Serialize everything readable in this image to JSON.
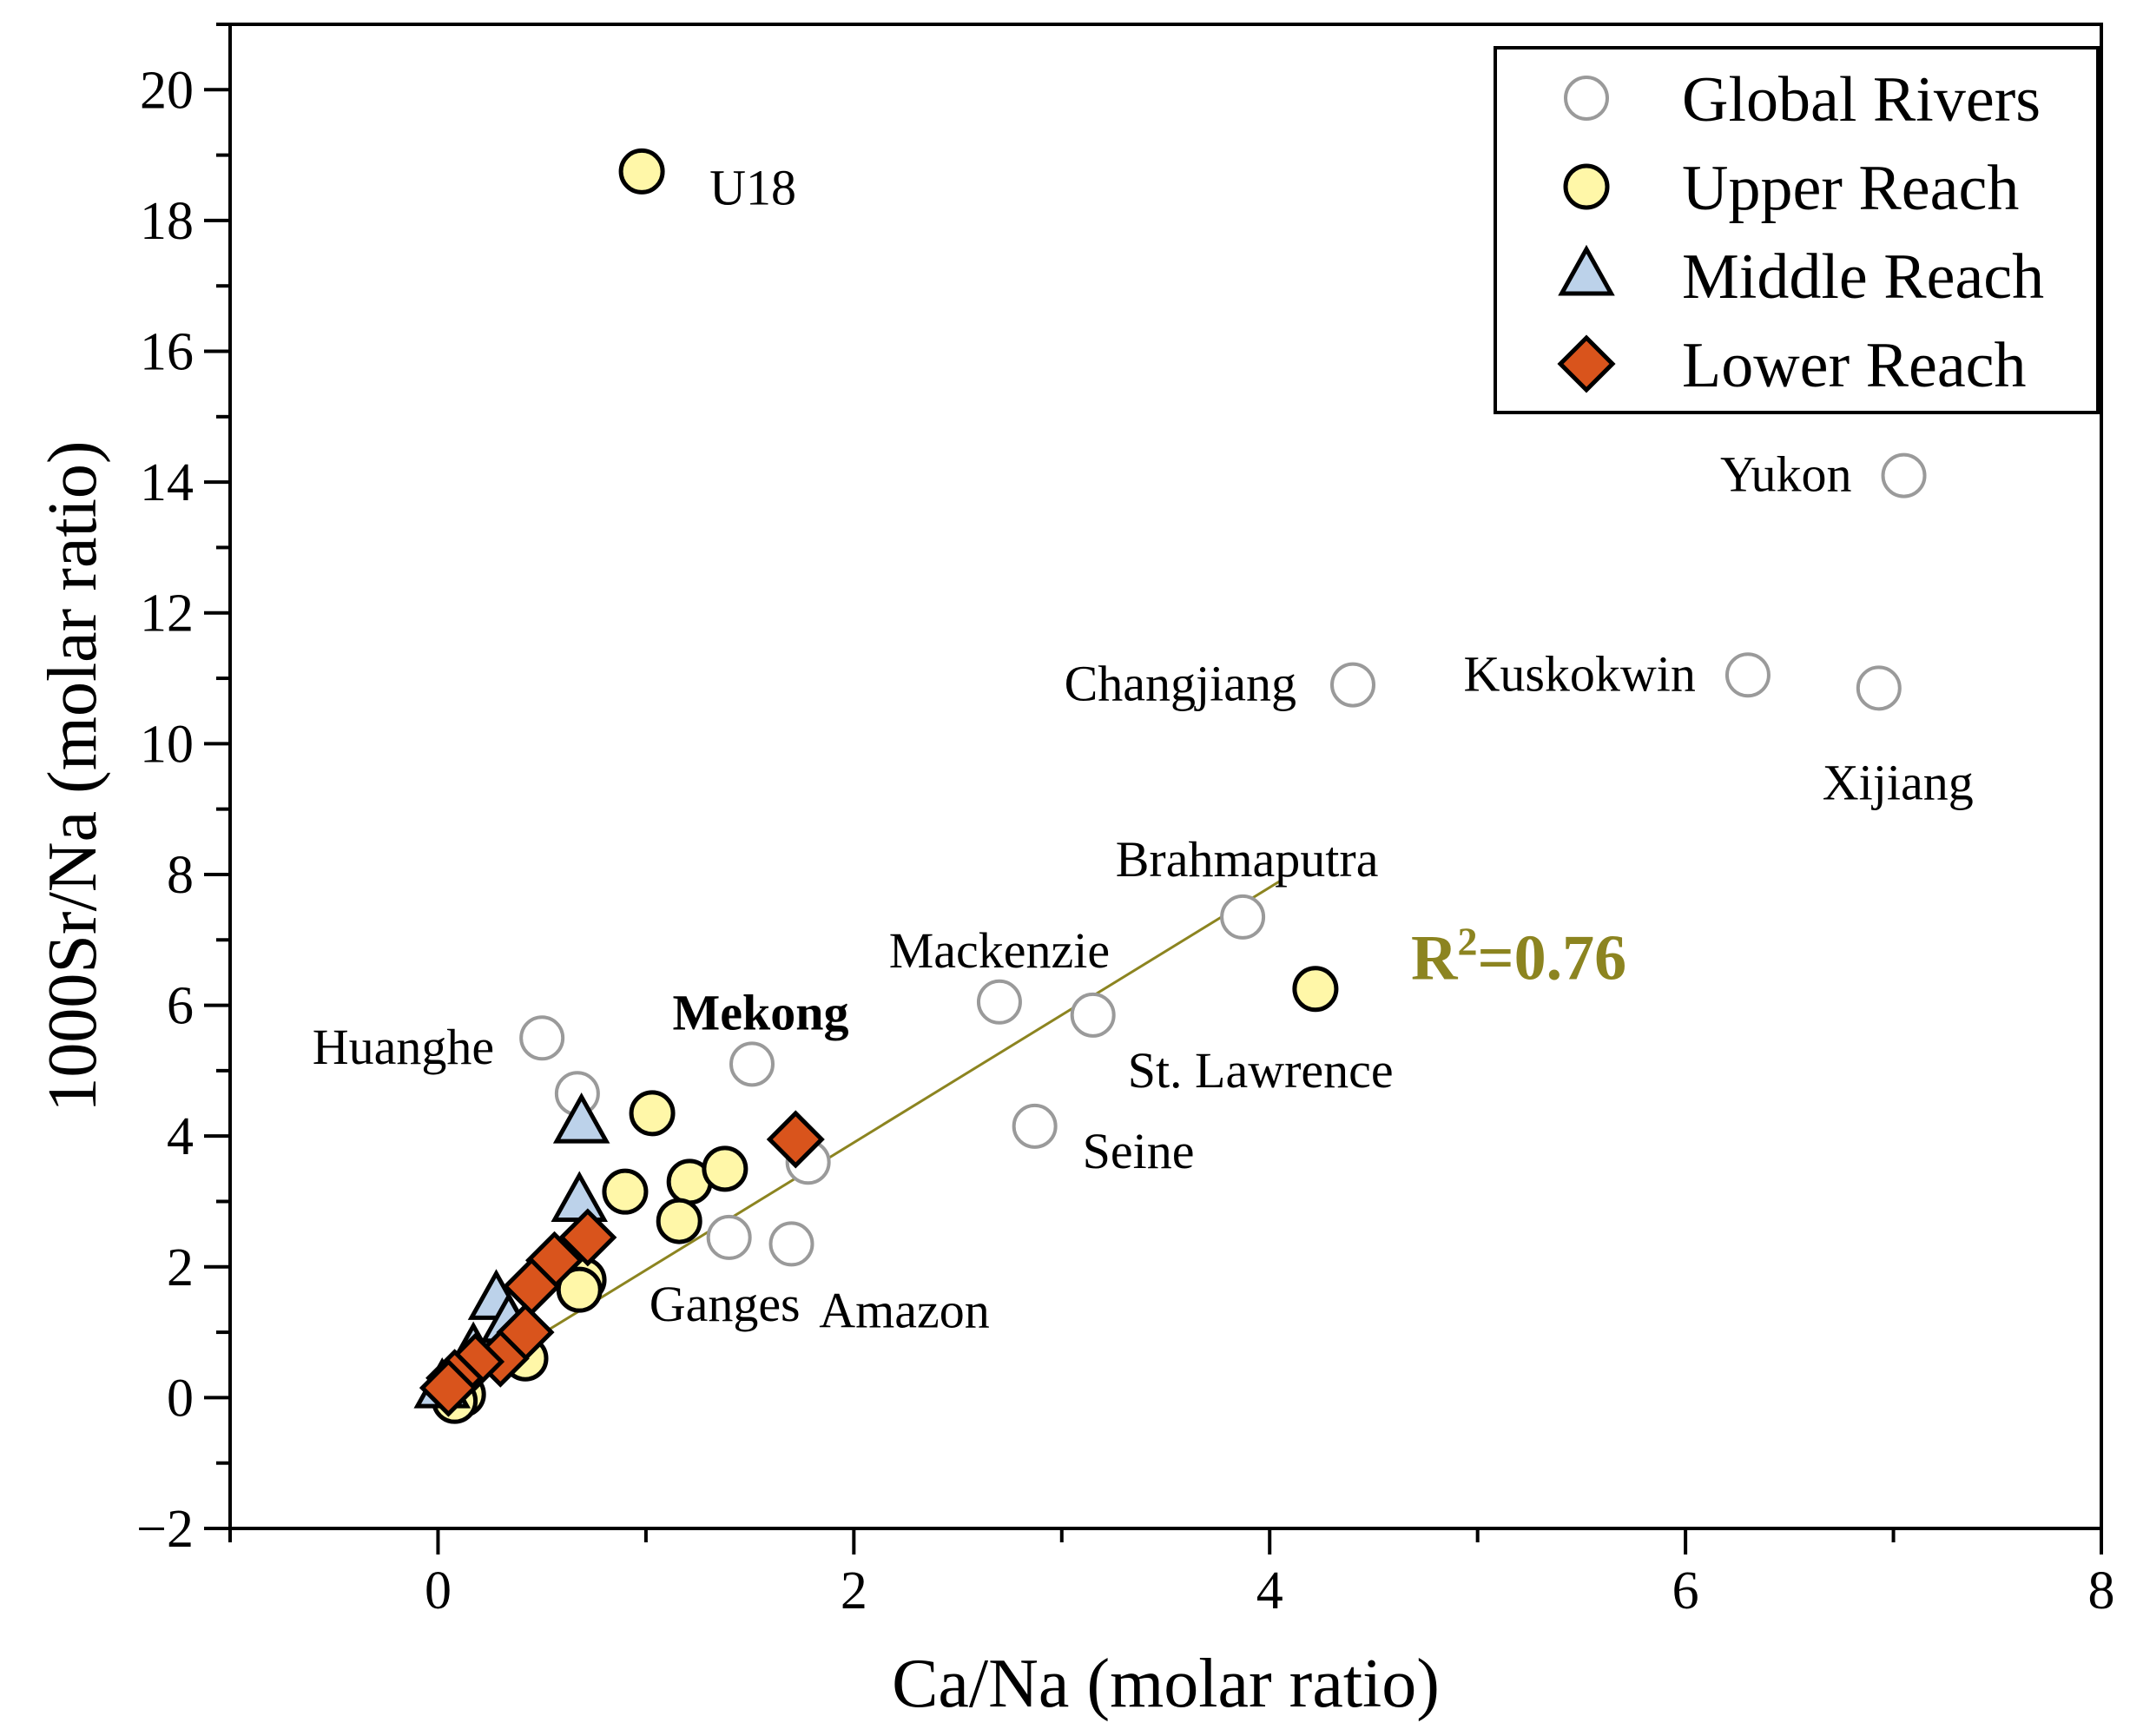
{
  "chart_data": {
    "type": "scatter",
    "xlabel": "Ca/Na (molar ratio)",
    "ylabel": "1000Sr/Na (molar ratio)",
    "xlim": [
      -1,
      8
    ],
    "ylim": [
      -2,
      21
    ],
    "x_ticks": [
      0,
      2,
      4,
      6,
      8
    ],
    "y_ticks": [
      -2,
      0,
      2,
      4,
      6,
      8,
      10,
      12,
      14,
      16,
      18,
      20
    ],
    "x_tick_labels": [
      "0",
      "2",
      "4",
      "6",
      "8"
    ],
    "y_tick_labels": [
      "−2",
      "0",
      "2",
      "4",
      "6",
      "8",
      "10",
      "12",
      "14",
      "16",
      "18",
      "20"
    ],
    "legend_position": "top-right",
    "colors": {
      "global_fill": "#ffffff",
      "global_stroke": "#9a9a9a",
      "upper_fill": "#fff7a8",
      "middle_fill": "#bcd2ea",
      "lower_fill": "#d9541c",
      "fit_line": "#8c8420",
      "r2_text": "#8c8420"
    },
    "fit_line": {
      "x": [
        0,
        4.05
      ],
      "y": [
        0,
        7.9
      ],
      "r2_label": "R²=0.76"
    },
    "series": [
      {
        "name": "Global Rivers",
        "marker": "open-circle",
        "points": [
          {
            "x": 0.5,
            "y": 5.5,
            "label": "Huanghe"
          },
          {
            "x": 0.67,
            "y": 4.65,
            "label": ""
          },
          {
            "x": 1.51,
            "y": 5.1,
            "label": "Mekong"
          },
          {
            "x": 1.78,
            "y": 3.6,
            "label": ""
          },
          {
            "x": 1.4,
            "y": 2.45,
            "label": "Ganges"
          },
          {
            "x": 1.7,
            "y": 2.35,
            "label": "Amazon"
          },
          {
            "x": 2.7,
            "y": 6.05,
            "label": "Mackenzie"
          },
          {
            "x": 3.15,
            "y": 5.85,
            "label": "St. Lawrence"
          },
          {
            "x": 2.87,
            "y": 4.15,
            "label": "Seine"
          },
          {
            "x": 3.87,
            "y": 7.35,
            "label": "Brahmaputra"
          },
          {
            "x": 4.4,
            "y": 10.9,
            "label": "Changjiang"
          },
          {
            "x": 6.3,
            "y": 11.05,
            "label": "Kuskokwin"
          },
          {
            "x": 6.93,
            "y": 10.85,
            "label": "Xijiang"
          },
          {
            "x": 7.05,
            "y": 14.1,
            "label": "Yukon"
          }
        ]
      },
      {
        "name": "Upper Reach",
        "marker": "circle",
        "points": [
          {
            "x": 0.98,
            "y": 18.75,
            "label": "U18"
          },
          {
            "x": 4.22,
            "y": 6.25,
            "label": ""
          },
          {
            "x": 1.03,
            "y": 4.35,
            "label": ""
          },
          {
            "x": 0.9,
            "y": 3.15,
            "label": ""
          },
          {
            "x": 1.21,
            "y": 3.3,
            "label": ""
          },
          {
            "x": 1.38,
            "y": 3.5,
            "label": ""
          },
          {
            "x": 1.16,
            "y": 2.7,
            "label": ""
          },
          {
            "x": 0.7,
            "y": 1.8,
            "label": ""
          },
          {
            "x": 0.68,
            "y": 1.65,
            "label": ""
          },
          {
            "x": 0.42,
            "y": 0.6,
            "label": ""
          },
          {
            "x": 0.12,
            "y": 0.05,
            "label": ""
          },
          {
            "x": 0.08,
            "y": -0.05,
            "label": ""
          }
        ]
      },
      {
        "name": "Middle Reach",
        "marker": "triangle",
        "points": [
          {
            "x": 0.69,
            "y": 4.2,
            "label": ""
          },
          {
            "x": 0.68,
            "y": 3.0,
            "label": ""
          },
          {
            "x": 0.28,
            "y": 1.5,
            "label": ""
          },
          {
            "x": 0.34,
            "y": 1.15,
            "label": ""
          },
          {
            "x": 0.17,
            "y": 0.7,
            "label": ""
          },
          {
            "x": 0.02,
            "y": 0.15,
            "label": ""
          }
        ]
      },
      {
        "name": "Lower Reach",
        "marker": "diamond",
        "points": [
          {
            "x": 1.72,
            "y": 3.95,
            "label": ""
          },
          {
            "x": 0.72,
            "y": 2.45,
            "label": ""
          },
          {
            "x": 0.56,
            "y": 2.1,
            "label": ""
          },
          {
            "x": 0.45,
            "y": 1.7,
            "label": ""
          },
          {
            "x": 0.42,
            "y": 1.0,
            "label": ""
          },
          {
            "x": 0.3,
            "y": 0.6,
            "label": ""
          },
          {
            "x": 0.18,
            "y": 0.55,
            "label": ""
          },
          {
            "x": 0.08,
            "y": 0.3,
            "label": ""
          },
          {
            "x": 0.05,
            "y": 0.15,
            "label": ""
          }
        ]
      }
    ]
  }
}
